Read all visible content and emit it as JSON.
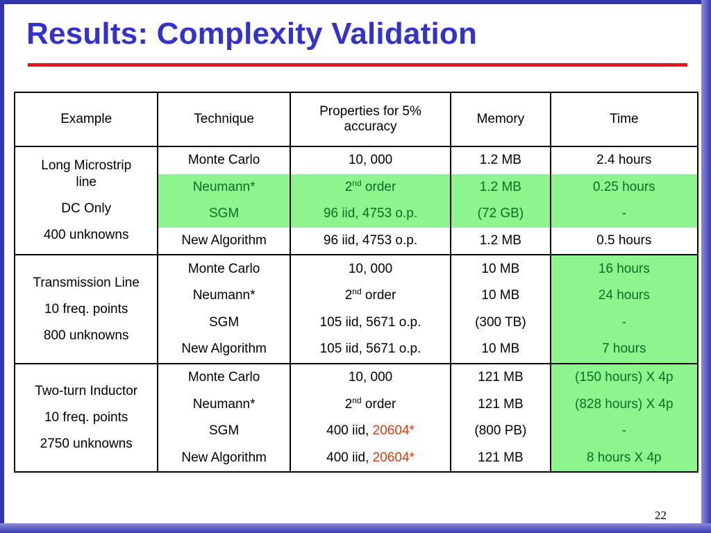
{
  "slide": {
    "title": "Results: Complexity Validation",
    "page_number": "22"
  },
  "table": {
    "headers": [
      "Example",
      "Technique",
      "Properties for 5% accuracy",
      "Memory",
      "Time"
    ],
    "groups": [
      {
        "example_lines": [
          "Long Microstrip line",
          "DC Only",
          "400 unknowns"
        ],
        "rows": [
          {
            "technique": "Monte Carlo",
            "properties": "10, 000",
            "memory": "1.2 MB",
            "time": "2.4 hours"
          },
          {
            "technique": "Neumann*",
            "properties_base": "2",
            "properties_sup": "nd",
            "properties_rest": " order",
            "memory": "1.2 MB",
            "time": "0.25 hours"
          },
          {
            "technique": "SGM",
            "properties": "96 iid, 4753 o.p.",
            "memory": "(72 GB)",
            "time": "-"
          },
          {
            "technique": "New Algorithm",
            "properties": "96 iid, 4753 o.p.",
            "memory": "1.2 MB",
            "time": "0.5 hours"
          }
        ]
      },
      {
        "example_lines": [
          "Transmission Line",
          "10 freq. points",
          "800 unknowns"
        ],
        "rows": [
          {
            "technique": "Monte Carlo",
            "properties": "10, 000",
            "memory": "10 MB",
            "time": "16 hours"
          },
          {
            "technique": "Neumann*",
            "properties_base": "2",
            "properties_sup": "nd",
            "properties_rest": " order",
            "memory": "10 MB",
            "time": "24 hours"
          },
          {
            "technique": "SGM",
            "properties": "105 iid, 5671 o.p.",
            "memory": "(300 TB)",
            "time": "-"
          },
          {
            "technique": "New Algorithm",
            "properties": "105 iid, 5671 o.p.",
            "memory": "10 MB",
            "time": "7 hours"
          }
        ]
      },
      {
        "example_lines": [
          "Two-turn Inductor",
          "10 freq. points",
          "2750 unknowns"
        ],
        "rows": [
          {
            "technique": "Monte Carlo",
            "properties": "10, 000",
            "memory": "121 MB",
            "time": "(150 hours) X 4p"
          },
          {
            "technique": "Neumann*",
            "properties_base": "2",
            "properties_sup": "nd",
            "properties_rest": " order",
            "memory": "121 MB",
            "time": "(828 hours) X 4p"
          },
          {
            "technique": "SGM",
            "properties_prefix": "400 iid, ",
            "properties_highlight": "20604*",
            "memory": "(800 PB)",
            "time": "-"
          },
          {
            "technique": "New Algorithm",
            "properties_prefix": "400 iid, ",
            "properties_highlight": "20604*",
            "memory": "121 MB",
            "time": "8 hours X 4p"
          }
        ]
      }
    ]
  },
  "colors": {
    "title": "#3333cc",
    "title_rule": "#e8141a",
    "highlight_fill": "#8ef58e",
    "highlight_text": "#0a6e22",
    "emphasis_text": "#e23a0a",
    "frame": "#3333aa"
  }
}
